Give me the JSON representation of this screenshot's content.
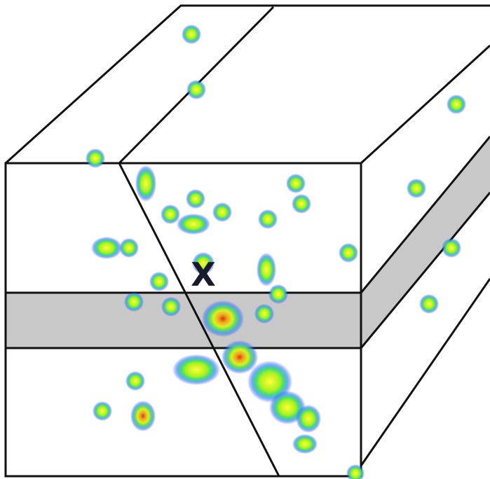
{
  "marker": {
    "label": "X"
  }
}
